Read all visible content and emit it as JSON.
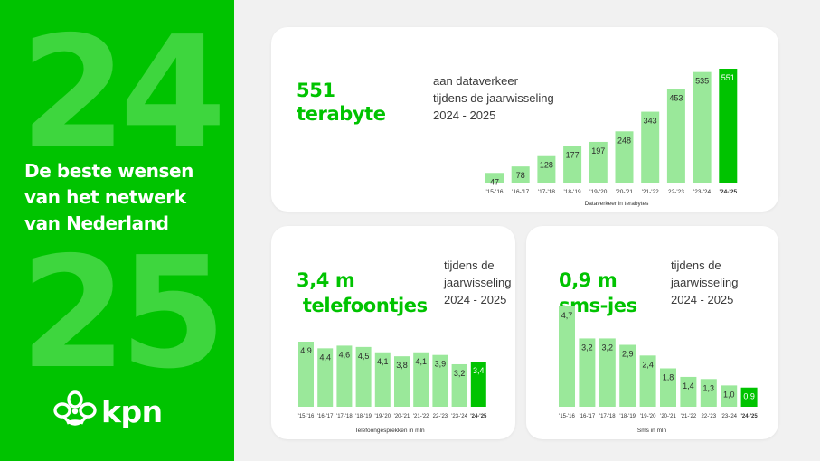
{
  "left_panel": {
    "big_top": "24",
    "big_bottom": "25",
    "headline": [
      "De beste wensen",
      "van het netwerk",
      "van Nederland"
    ],
    "logo_text": "kpn"
  },
  "colors": {
    "brand_green": "#00c300",
    "light_green": "#9ae89a",
    "panel_digits": "#3ed63e"
  },
  "top_card": {
    "stat_lines": [
      "551",
      "terabyte"
    ],
    "desc_lines": [
      "aan dataverkeer",
      "tijdens de jaarwisseling",
      "2024 - 2025"
    ]
  },
  "bottom_left_card": {
    "stat_lines": [
      "3,4 m",
      " telefoontjes"
    ],
    "desc_lines": [
      "tijdens de",
      "jaarwisseling",
      "2024 - 2025"
    ]
  },
  "bottom_right_card": {
    "stat_lines": [
      "0,9 m",
      "sms-jes"
    ],
    "desc_lines": [
      "tijdens de",
      "jaarwisseling",
      "2024 - 2025"
    ]
  },
  "chart_data": [
    {
      "type": "bar",
      "categories": [
        "'15-'16",
        "'16-'17",
        "'17-'18",
        "'18-'19",
        "'19-'20",
        "'20-'21",
        "'21-'22",
        "22-'23",
        "'23-'24",
        "'24-'25"
      ],
      "values": [
        47,
        78,
        128,
        177,
        197,
        248,
        343,
        453,
        535,
        551
      ],
      "value_labels": [
        "47",
        "78",
        "128",
        "177",
        "197",
        "248",
        "343",
        "453",
        "535",
        "551"
      ],
      "highlight_index": 9,
      "xlabel": "Dataverkeer in terabytes",
      "ylim": [
        0,
        551
      ]
    },
    {
      "type": "bar",
      "categories": [
        "'15-'16",
        "'16-'17",
        "'17-'18",
        "'18-'19",
        "'19-'20",
        "'20-'21",
        "'21-'22",
        "22-'23",
        "'23-'24",
        "'24-'25"
      ],
      "values": [
        4.9,
        4.4,
        4.6,
        4.5,
        4.1,
        3.8,
        4.1,
        3.9,
        3.2,
        3.4
      ],
      "value_labels": [
        "4,9",
        "4,4",
        "4,6",
        "4,5",
        "4,1",
        "3,8",
        "4,1",
        "3,9",
        "3,2",
        "3,4"
      ],
      "highlight_index": 9,
      "xlabel": "Telefoongesprekken in mln",
      "ylim": [
        0,
        4.9
      ]
    },
    {
      "type": "bar",
      "categories": [
        "'15-'16",
        "'16-'17",
        "'17-'18",
        "'18-'19",
        "'19-'20",
        "'20-'21",
        "'21-'22",
        "22-'23",
        "'23-'24",
        "'24-'25"
      ],
      "values": [
        4.7,
        3.2,
        3.2,
        2.9,
        2.4,
        1.8,
        1.4,
        1.3,
        1.0,
        0.9
      ],
      "value_labels": [
        "4,7",
        "3,2",
        "3,2",
        "2,9",
        "2,4",
        "1,8",
        "1,4",
        "1,3",
        "1,0",
        "0,9"
      ],
      "highlight_index": 9,
      "xlabel": "Sms in mln",
      "ylim": [
        0,
        4.7
      ]
    }
  ]
}
